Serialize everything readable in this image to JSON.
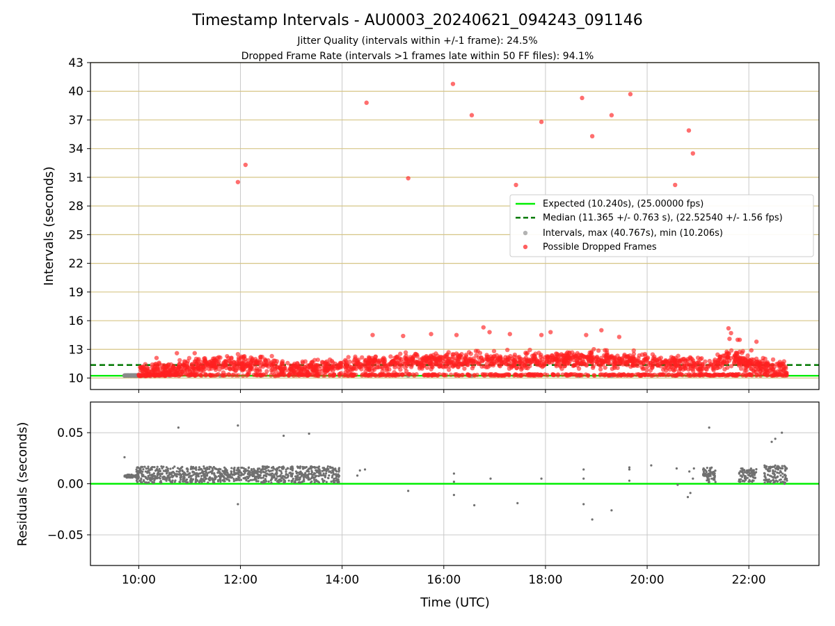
{
  "title": "Timestamp Intervals - AU0003_20240621_094243_091146",
  "subtitle_1": "Jitter Quality (intervals within +/-1 frame): 24.5%",
  "subtitle_2": "Dropped Frame Rate (intervals >1 frames late within 50 FF files): 94.1%",
  "chart_data": [
    {
      "type": "scatter",
      "panel": "top",
      "ylabel": "Intervals (seconds)",
      "ylim": [
        8.8,
        43
      ],
      "yticks": [
        10,
        13,
        16,
        19,
        22,
        25,
        28,
        31,
        34,
        37,
        40,
        43
      ],
      "ytick_labels": [
        "10",
        "13",
        "16",
        "19",
        "22",
        "25",
        "28",
        "31",
        "34",
        "37",
        "40",
        "43"
      ],
      "xlim_hours": [
        9.05,
        23.38
      ],
      "grid": {
        "vertical": true,
        "horizontal_gold_lines": true
      },
      "reference_lines": [
        {
          "name": "Expected (10.240s), (25.00000 fps)",
          "y": 10.24,
          "color": "#00ee00",
          "style": "solid"
        },
        {
          "name": "Median (11.365 +/- 0.763 s), (22.52540 +/- 1.56 fps)",
          "y": 11.365,
          "color": "#007700",
          "style": "dashed"
        }
      ],
      "legend": {
        "placement": "center-right",
        "entries": [
          {
            "label": "Expected (10.240s), (25.00000 fps)",
            "kind": "line",
            "color": "#00ee00"
          },
          {
            "label": "Median (11.365 +/- 0.763 s), (22.52540 +/- 1.56 fps)",
            "kind": "dashed",
            "color": "#007700"
          },
          {
            "label": "Intervals, max (40.767s), min (10.206s)",
            "kind": "dot",
            "color": "#9a9a9a"
          },
          {
            "label": "Possible Dropped Frames",
            "kind": "dot",
            "color": "#ff2a2a"
          }
        ]
      },
      "series": [
        {
          "name": "Intervals, max (40.767s), min (10.206s)",
          "color": "#8a8a8a",
          "points": [
            [
              9.72,
              10.25
            ],
            [
              9.8,
              10.26
            ],
            [
              9.88,
              10.25
            ],
            [
              9.95,
              10.26
            ],
            [
              10.1,
              10.24
            ],
            [
              10.22,
              10.25
            ],
            [
              10.4,
              10.25
            ],
            [
              10.6,
              10.25
            ],
            [
              11.0,
              10.26
            ],
            [
              11.6,
              10.26
            ],
            [
              12.4,
              10.25
            ],
            [
              15.3,
              10.25
            ],
            [
              16.55,
              10.24
            ],
            [
              18.65,
              10.24
            ],
            [
              19.3,
              10.24
            ],
            [
              20.55,
              10.25
            ]
          ]
        },
        {
          "name": "Possible Dropped Frames",
          "color": "#ff2020",
          "outliers": [
            [
              11.95,
              30.5
            ],
            [
              12.1,
              32.3
            ],
            [
              14.48,
              38.8
            ],
            [
              15.3,
              30.9
            ],
            [
              16.18,
              40.77
            ],
            [
              16.55,
              37.5
            ],
            [
              17.42,
              30.2
            ],
            [
              17.92,
              36.8
            ],
            [
              18.72,
              39.3
            ],
            [
              18.92,
              35.3
            ],
            [
              19.3,
              37.5
            ],
            [
              19.67,
              39.7
            ],
            [
              20.55,
              30.2
            ],
            [
              20.82,
              35.9
            ],
            [
              20.9,
              33.5
            ],
            [
              16.78,
              15.3
            ],
            [
              14.6,
              14.5
            ],
            [
              15.2,
              14.4
            ],
            [
              15.75,
              14.6
            ],
            [
              16.25,
              14.5
            ],
            [
              17.3,
              14.6
            ],
            [
              17.92,
              14.5
            ],
            [
              18.1,
              14.8
            ],
            [
              18.8,
              14.5
            ],
            [
              19.1,
              15.0
            ],
            [
              19.45,
              14.3
            ],
            [
              16.9,
              14.8
            ],
            [
              21.6,
              15.2
            ],
            [
              21.65,
              14.7
            ],
            [
              21.62,
              14.1
            ],
            [
              21.78,
              14.0
            ],
            [
              21.82,
              14.0
            ],
            [
              22.15,
              13.8
            ],
            [
              22.05,
              12.9
            ],
            [
              10.35,
              12.1
            ],
            [
              10.4,
              11.6
            ],
            [
              10.75,
              12.6
            ],
            [
              11.1,
              12.6
            ]
          ],
          "band": {
            "x_range": [
              10.0,
              22.75
            ],
            "baseline": 10.25,
            "center_profile": [
              [
                10.0,
                10.6
              ],
              [
                10.5,
                10.8
              ],
              [
                11.0,
                11.1
              ],
              [
                11.5,
                11.5
              ],
              [
                12.0,
                11.5
              ],
              [
                12.5,
                11.3
              ],
              [
                13.0,
                11.0
              ],
              [
                13.5,
                10.9
              ],
              [
                14.0,
                11.3
              ],
              [
                14.5,
                11.5
              ],
              [
                15.0,
                11.6
              ],
              [
                15.5,
                11.7
              ],
              [
                16.0,
                11.8
              ],
              [
                16.5,
                11.9
              ],
              [
                17.0,
                11.8
              ],
              [
                17.5,
                11.8
              ],
              [
                18.0,
                11.9
              ],
              [
                18.5,
                11.9
              ],
              [
                19.0,
                12.0
              ],
              [
                19.5,
                11.9
              ],
              [
                20.0,
                11.7
              ],
              [
                20.5,
                11.6
              ],
              [
                21.0,
                11.3
              ],
              [
                21.2,
                11.1
              ],
              [
                21.5,
                12.0
              ],
              [
                21.7,
                12.2
              ],
              [
                22.0,
                11.5
              ],
              [
                22.5,
                11.0
              ],
              [
                22.75,
                10.8
              ]
            ],
            "spread": 0.75
          }
        }
      ]
    },
    {
      "type": "scatter",
      "panel": "bottom",
      "xlabel": "Time (UTC)",
      "ylabel": "Residuals (seconds)",
      "ylim": [
        -0.08,
        0.08
      ],
      "yticks": [
        -0.05,
        0.0,
        0.05
      ],
      "ytick_labels": [
        "−0.05",
        "0.00",
        "0.05"
      ],
      "xlim_hours": [
        9.05,
        23.38
      ],
      "xticks_hours": [
        10,
        12,
        14,
        16,
        18,
        20,
        22
      ],
      "xtick_labels": [
        "10:00",
        "12:00",
        "14:00",
        "16:00",
        "18:00",
        "20:00",
        "22:00"
      ],
      "grid": {
        "vertical": true,
        "horizontal": true
      },
      "reference_lines": [
        {
          "name": "zero residual",
          "y": 0.0,
          "color": "#00ee00",
          "style": "solid"
        }
      ],
      "series": [
        {
          "name": "Residuals",
          "color": "#707070",
          "points": [
            [
              9.72,
              0.026
            ],
            [
              10.78,
              0.055
            ],
            [
              11.95,
              0.057
            ],
            [
              12.85,
              0.047
            ],
            [
              13.35,
              0.049
            ],
            [
              11.95,
              -0.02
            ],
            [
              15.3,
              -0.007
            ],
            [
              16.2,
              0.01
            ],
            [
              16.2,
              0.002
            ],
            [
              16.2,
              -0.011
            ],
            [
              16.6,
              -0.021
            ],
            [
              16.92,
              0.005
            ],
            [
              17.45,
              -0.019
            ],
            [
              17.92,
              0.005
            ],
            [
              18.75,
              0.014
            ],
            [
              18.75,
              0.005
            ],
            [
              18.75,
              -0.02
            ],
            [
              18.92,
              -0.035
            ],
            [
              19.3,
              -0.026
            ],
            [
              19.65,
              0.014
            ],
            [
              19.65,
              0.016
            ],
            [
              19.65,
              0.003
            ],
            [
              20.08,
              0.018
            ],
            [
              20.58,
              0.015
            ],
            [
              20.6,
              -0.001
            ],
            [
              20.8,
              -0.013
            ],
            [
              20.85,
              -0.009
            ],
            [
              20.83,
              0.012
            ],
            [
              20.9,
              0.005
            ],
            [
              20.92,
              0.015
            ],
            [
              21.22,
              0.055
            ],
            [
              22.45,
              0.041
            ],
            [
              22.52,
              0.044
            ],
            [
              22.65,
              0.05
            ],
            [
              14.35,
              0.013
            ],
            [
              14.45,
              0.014
            ],
            [
              14.3,
              0.008
            ]
          ],
          "clusters": [
            {
              "x_range": [
                9.72,
                10.0
              ],
              "y_range": [
                0.006,
                0.009
              ]
            },
            {
              "x_range": [
                9.95,
                11.55
              ],
              "y_range": [
                0.001,
                0.017
              ]
            },
            {
              "x_range": [
                11.55,
                12.4
              ],
              "y_range": [
                0.002,
                0.016
              ]
            },
            {
              "x_range": [
                12.4,
                13.95
              ],
              "y_range": [
                0.001,
                0.017
              ]
            },
            {
              "x_range": [
                21.1,
                21.35
              ],
              "y_range": [
                0.001,
                0.016
              ]
            },
            {
              "x_range": [
                21.8,
                22.15
              ],
              "y_range": [
                0.002,
                0.015
              ]
            },
            {
              "x_range": [
                22.3,
                22.75
              ],
              "y_range": [
                0.0,
                0.018
              ]
            }
          ]
        }
      ]
    }
  ]
}
